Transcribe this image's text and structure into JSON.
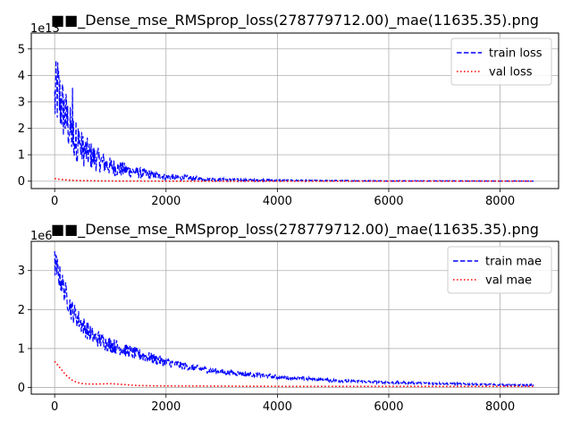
{
  "chart_data": [
    {
      "type": "line",
      "title": "■■_Dense_mse_RMSprop_loss(278779712.00)_mae(11635.35).png",
      "xlabel": "",
      "ylabel": "",
      "xlim": [
        -420,
        9050
      ],
      "ylim": [
        -0.28,
        5.6
      ],
      "y_multiplier": "1e13",
      "xticks": [
        0,
        2000,
        4000,
        6000,
        8000
      ],
      "yticks": [
        0,
        1,
        2,
        3,
        4,
        5
      ],
      "grid": true,
      "legend": "top-right",
      "series": [
        {
          "name": "train loss",
          "color": "#0000ff",
          "style": "dashed",
          "x": [
            0,
            50,
            100,
            200,
            300,
            500,
            700,
            1000,
            1500,
            2000,
            3000,
            4000,
            5000,
            6000,
            7000,
            8000,
            8600
          ],
          "y": [
            3.0,
            3.4,
            3.0,
            2.4,
            1.8,
            1.2,
            0.9,
            0.55,
            0.32,
            0.16,
            0.06,
            0.03,
            0.02,
            0.01,
            0.01,
            0.005,
            0.005
          ],
          "noise": [
            1.3,
            1.5,
            1.3,
            1.1,
            0.9,
            0.65,
            0.5,
            0.35,
            0.22,
            0.12,
            0.05,
            0.03,
            0.02,
            0.015,
            0.01,
            0.008,
            0.008
          ]
        },
        {
          "name": "val loss",
          "color": "#ff0000",
          "style": "dotted",
          "x": [
            0,
            100,
            200,
            300,
            500,
            800,
            1200,
            2000,
            4000,
            6000,
            8600
          ],
          "y": [
            0.1,
            0.07,
            0.05,
            0.035,
            0.02,
            0.01,
            0.005,
            0.002,
            0.001,
            0.001,
            0.001
          ],
          "noise": [
            0,
            0,
            0,
            0,
            0,
            0,
            0,
            0,
            0,
            0,
            0
          ]
        }
      ]
    },
    {
      "type": "line",
      "title": "■■_Dense_mse_RMSprop_loss(278779712.00)_mae(11635.35).png",
      "xlabel": "",
      "ylabel": "",
      "xlim": [
        -420,
        9050
      ],
      "ylim": [
        -0.17,
        3.75
      ],
      "y_multiplier": "1e6",
      "xticks": [
        0,
        2000,
        4000,
        6000,
        8000
      ],
      "yticks": [
        0,
        1,
        2,
        3
      ],
      "grid": true,
      "legend": "top-right",
      "series": [
        {
          "name": "train mae",
          "color": "#0000ff",
          "style": "dashed",
          "x": [
            0,
            50,
            100,
            200,
            300,
            500,
            700,
            1000,
            1500,
            2000,
            2500,
            3000,
            4000,
            5000,
            6000,
            7000,
            8000,
            8600
          ],
          "y": [
            3.2,
            3.0,
            2.8,
            2.4,
            2.0,
            1.6,
            1.3,
            1.1,
            0.85,
            0.65,
            0.5,
            0.4,
            0.27,
            0.18,
            0.13,
            0.1,
            0.07,
            0.06
          ],
          "noise": [
            0.35,
            0.35,
            0.32,
            0.3,
            0.28,
            0.25,
            0.22,
            0.2,
            0.16,
            0.12,
            0.09,
            0.07,
            0.05,
            0.04,
            0.03,
            0.025,
            0.02,
            0.02
          ]
        },
        {
          "name": "val mae",
          "color": "#ff0000",
          "style": "dotted",
          "x": [
            0,
            100,
            200,
            300,
            400,
            500,
            600,
            800,
            1000,
            1200,
            1500,
            2000,
            3000,
            4000,
            5000,
            6000,
            7000,
            8000,
            8600
          ],
          "y": [
            0.67,
            0.5,
            0.32,
            0.2,
            0.13,
            0.1,
            0.09,
            0.09,
            0.1,
            0.08,
            0.05,
            0.04,
            0.035,
            0.03,
            0.03,
            0.03,
            0.03,
            0.03,
            0.03
          ],
          "noise": [
            0,
            0,
            0,
            0,
            0,
            0,
            0,
            0,
            0,
            0,
            0,
            0,
            0,
            0,
            0,
            0,
            0,
            0,
            0
          ]
        }
      ]
    }
  ]
}
